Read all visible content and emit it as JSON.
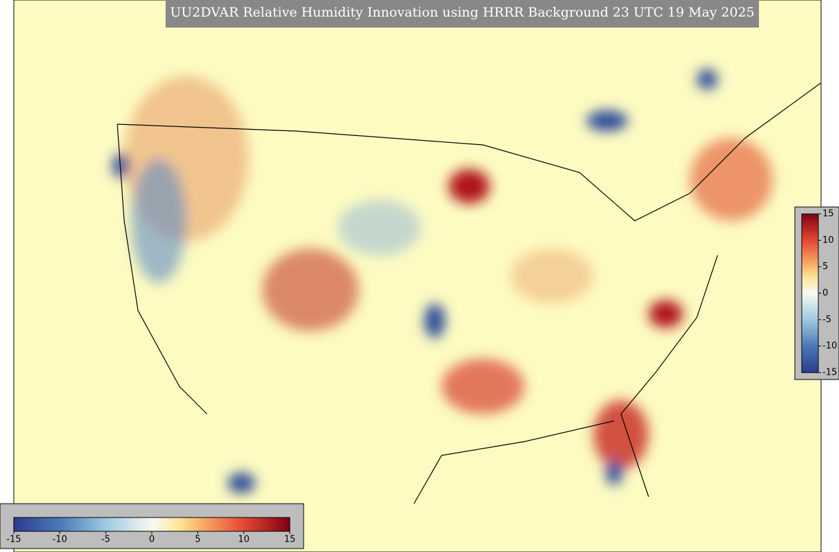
{
  "title": "UU2DVAR Relative Humidity Innovation using HRRR Background 23 UTC 19 May 2025",
  "colorbar_right": {
    "ticks": [
      -15,
      -10,
      -5,
      0,
      5,
      10,
      15
    ]
  },
  "colorbar_bottom": {
    "ticks": [
      -15,
      -10,
      -5,
      0,
      5,
      10,
      15
    ]
  }
}
